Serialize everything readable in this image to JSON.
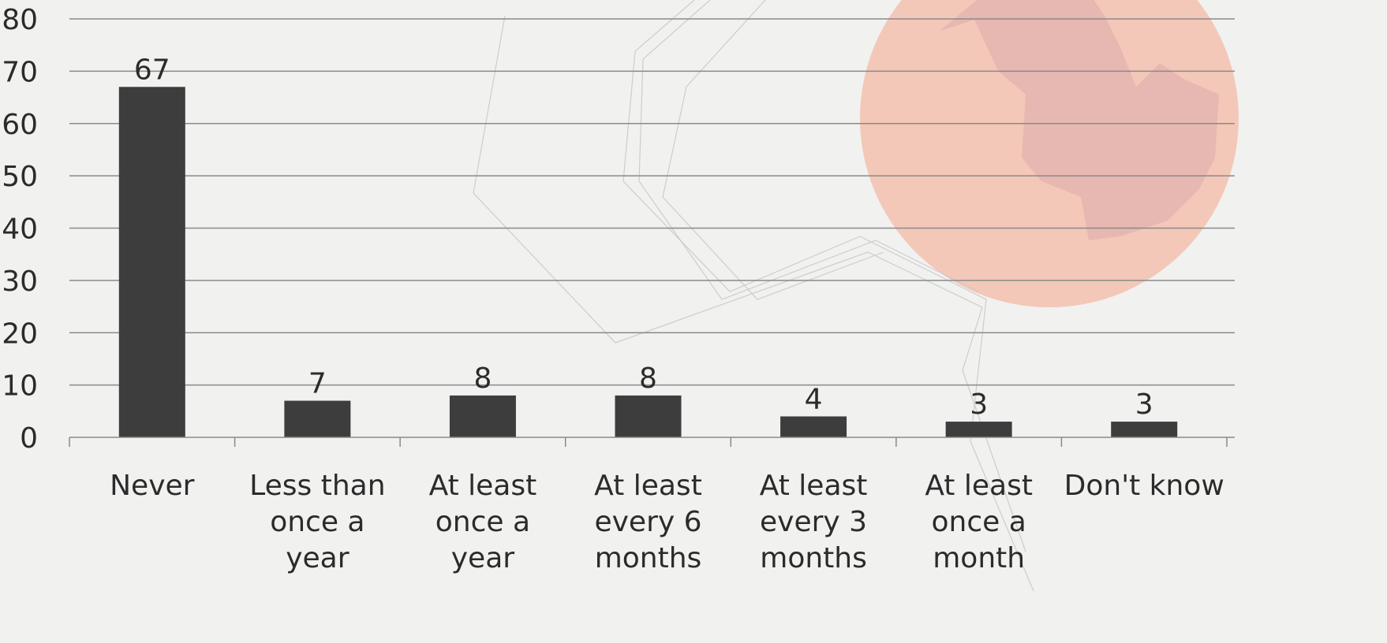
{
  "chart_data": {
    "type": "bar",
    "title": "",
    "xlabel": "",
    "ylabel": "",
    "ylim": [
      0,
      80
    ],
    "yticks": [
      0,
      10,
      20,
      30,
      40,
      50,
      60,
      70,
      80
    ],
    "grid": true,
    "categories": [
      [
        "Never"
      ],
      [
        "Less than",
        "once a",
        "year"
      ],
      [
        "At least",
        "once a",
        "year"
      ],
      [
        "At least",
        "every 6",
        "months"
      ],
      [
        "At least",
        "every 3",
        "months"
      ],
      [
        "At least",
        "once a",
        "month"
      ],
      [
        "Don't know"
      ]
    ],
    "values": [
      67,
      7,
      8,
      8,
      4,
      3,
      3
    ],
    "data_labels": [
      "67",
      "7",
      "8",
      "8",
      "4",
      "3",
      "3"
    ]
  },
  "colors": {
    "bar": "#3d3d3d",
    "grid": "#8a8a8a",
    "text": "#2b2b2b",
    "background": "#f1f1f0",
    "decor_circle": "#f3b9a6",
    "decor_shape": "#d9a3a8"
  }
}
